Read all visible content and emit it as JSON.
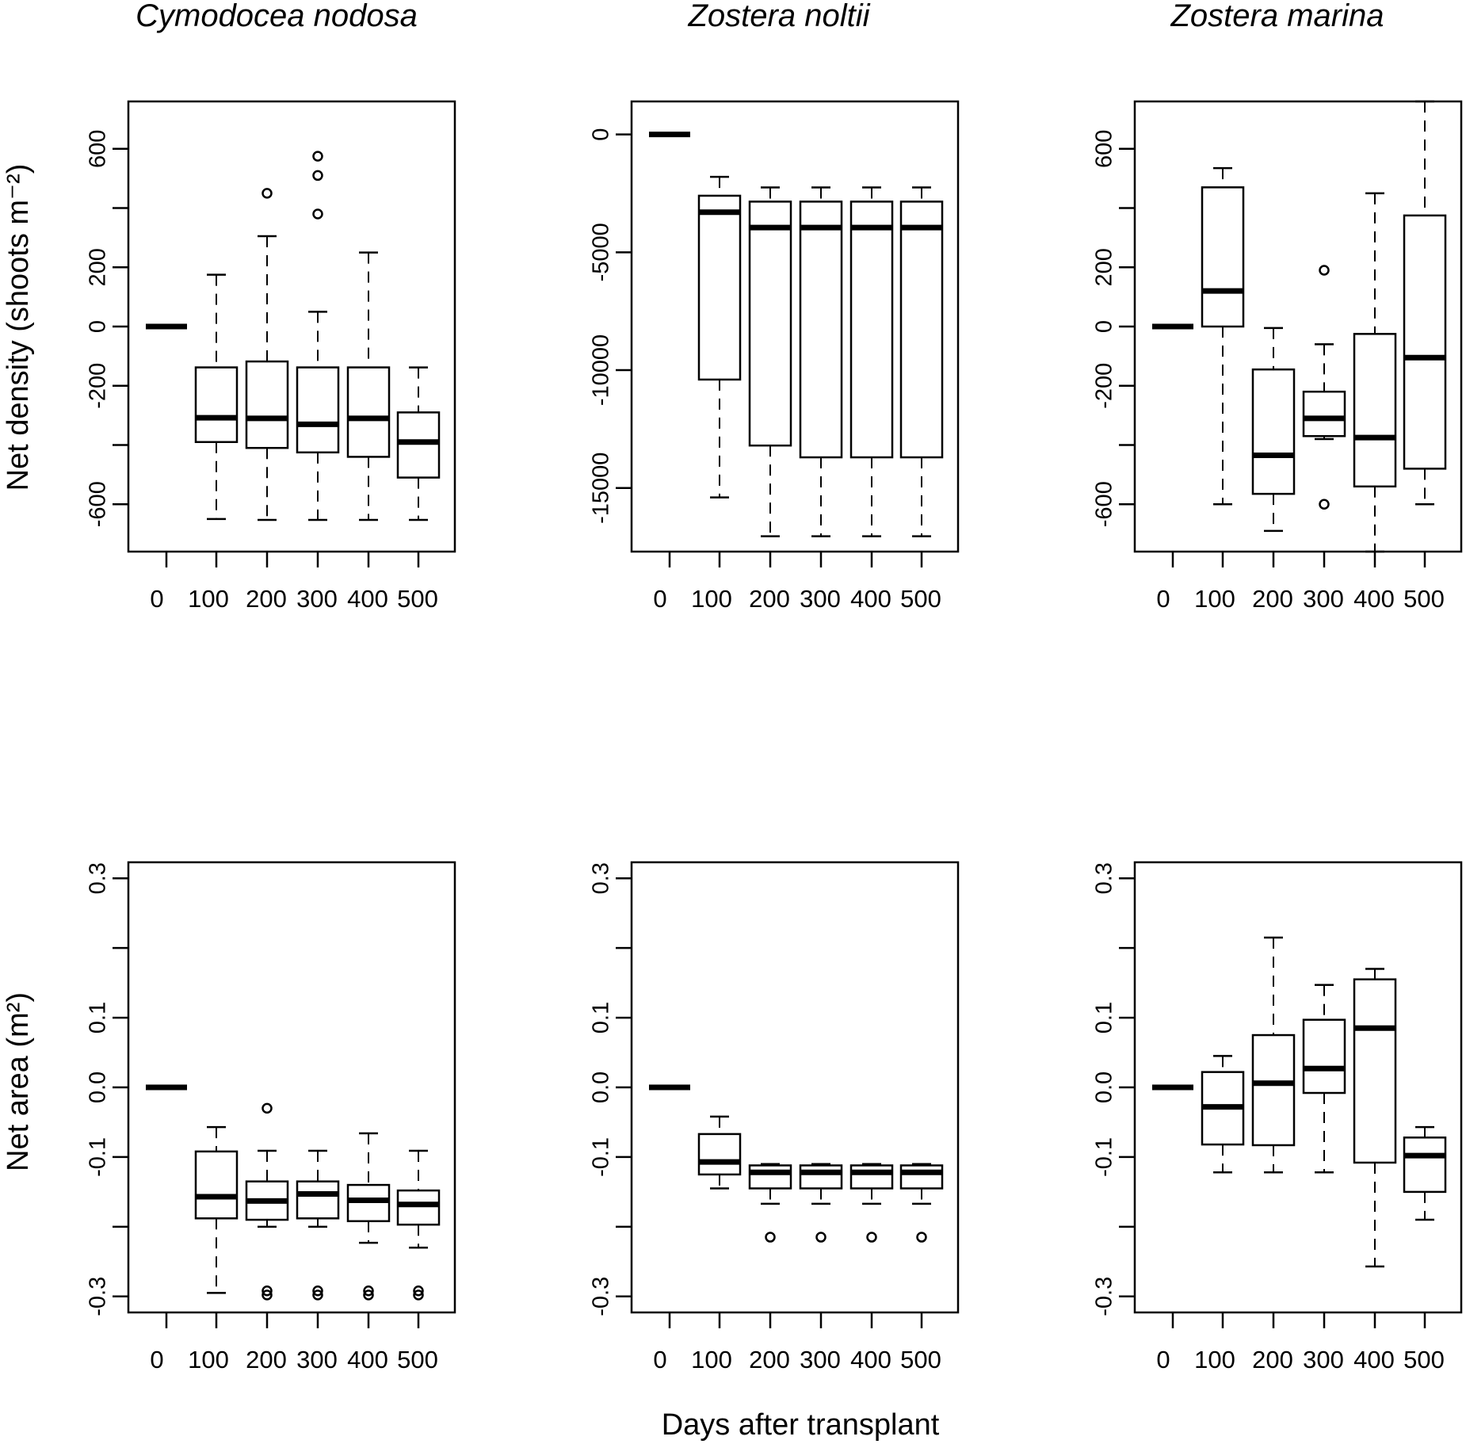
{
  "figure": {
    "row_labels": [
      "Net density (shoots m⁻²)",
      "Net area (m²)"
    ],
    "x_axis_label": "Days after transplant"
  },
  "chart_data": [
    {
      "type": "boxplot",
      "title": "Cymodocea nodosa",
      "ylabel": "Net density (shoots m⁻²)",
      "xlabel": "Days after transplant",
      "categories": [
        "0",
        "100",
        "200",
        "300",
        "400",
        "500"
      ],
      "ylim": [
        -760,
        760
      ],
      "yticks": [
        -600,
        -200,
        0,
        200,
        600
      ],
      "yticks_minor": [
        -400,
        400
      ],
      "boxes": [
        {
          "min": 0,
          "q1": 0,
          "median": 0,
          "q3": 0,
          "max": 0,
          "outliers": []
        },
        {
          "min": -650,
          "q1": -390,
          "median": -308,
          "q3": -138,
          "max": 175,
          "outliers": []
        },
        {
          "min": -653,
          "q1": -410,
          "median": -310,
          "q3": -118,
          "max": 305,
          "outliers": [
            450
          ]
        },
        {
          "min": -653,
          "q1": -425,
          "median": -330,
          "q3": -138,
          "max": 50,
          "outliers": [
            380,
            510,
            575
          ]
        },
        {
          "min": -653,
          "q1": -440,
          "median": -310,
          "q3": -138,
          "max": 250,
          "outliers": []
        },
        {
          "min": -653,
          "q1": -510,
          "median": -390,
          "q3": -290,
          "max": -138,
          "outliers": []
        }
      ]
    },
    {
      "type": "boxplot",
      "title": "Zostera noltii",
      "ylabel": "",
      "xlabel": "Days after transplant",
      "categories": [
        "0",
        "100",
        "200",
        "300",
        "400",
        "500"
      ],
      "ylim": [
        -17700,
        1400
      ],
      "yticks": [
        -15000,
        -10000,
        -5000,
        0
      ],
      "yticks_minor": [],
      "boxes": [
        {
          "min": 0,
          "q1": 0,
          "median": 0,
          "q3": 0,
          "max": 0,
          "outliers": []
        },
        {
          "min": -15400,
          "q1": -10400,
          "median": -3300,
          "q3": -2600,
          "max": -1800,
          "outliers": []
        },
        {
          "min": -17050,
          "q1": -13200,
          "median": -3950,
          "q3": -2850,
          "max": -2250,
          "outliers": []
        },
        {
          "min": -17050,
          "q1": -13700,
          "median": -3950,
          "q3": -2850,
          "max": -2250,
          "outliers": []
        },
        {
          "min": -17050,
          "q1": -13700,
          "median": -3950,
          "q3": -2850,
          "max": -2250,
          "outliers": []
        },
        {
          "min": -17050,
          "q1": -13700,
          "median": -3950,
          "q3": -2850,
          "max": -2250,
          "outliers": []
        }
      ]
    },
    {
      "type": "boxplot",
      "title": "Zostera marina",
      "ylabel": "",
      "xlabel": "Days after transplant",
      "categories": [
        "0",
        "100",
        "200",
        "300",
        "400",
        "500"
      ],
      "ylim": [
        -760,
        760
      ],
      "yticks": [
        -600,
        -200,
        0,
        200,
        600
      ],
      "yticks_minor": [
        -400,
        400
      ],
      "boxes": [
        {
          "min": 0,
          "q1": 0,
          "median": 0,
          "q3": 0,
          "max": 0,
          "outliers": []
        },
        {
          "min": -600,
          "q1": 0,
          "median": 120,
          "q3": 470,
          "max": 535,
          "outliers": []
        },
        {
          "min": -690,
          "q1": -565,
          "median": -435,
          "q3": -145,
          "max": -5,
          "outliers": []
        },
        {
          "min": -380,
          "q1": -370,
          "median": -310,
          "q3": -220,
          "max": -60,
          "outliers": [
            -600,
            190
          ]
        },
        {
          "min": -760,
          "q1": -540,
          "median": -375,
          "q3": -25,
          "max": 450,
          "outliers": []
        },
        {
          "min": -600,
          "q1": -480,
          "median": -105,
          "q3": 375,
          "max": 760,
          "outliers": []
        }
      ]
    },
    {
      "type": "boxplot",
      "title": "",
      "ylabel": "Net area (m²)",
      "xlabel": "Days after transplant",
      "categories": [
        "0",
        "100",
        "200",
        "300",
        "400",
        "500"
      ],
      "ylim": [
        -0.323,
        0.323
      ],
      "yticks": [
        -0.3,
        -0.1,
        0.0,
        0.1,
        0.3
      ],
      "yticks_minor": [
        -0.2,
        0.2
      ],
      "boxes": [
        {
          "min": 0.0,
          "q1": 0.0,
          "median": 0.0,
          "q3": 0.0,
          "max": 0.0,
          "outliers": []
        },
        {
          "min": -0.295,
          "q1": -0.188,
          "median": -0.157,
          "q3": -0.092,
          "max": -0.057,
          "outliers": []
        },
        {
          "min": -0.2,
          "q1": -0.19,
          "median": -0.163,
          "q3": -0.135,
          "max": -0.091,
          "outliers": [
            -0.03,
            -0.292,
            -0.298
          ]
        },
        {
          "min": -0.2,
          "q1": -0.188,
          "median": -0.153,
          "q3": -0.135,
          "max": -0.091,
          "outliers": [
            -0.292,
            -0.298
          ]
        },
        {
          "min": -0.223,
          "q1": -0.192,
          "median": -0.162,
          "q3": -0.14,
          "max": -0.066,
          "outliers": [
            -0.292,
            -0.298
          ]
        },
        {
          "min": -0.23,
          "q1": -0.197,
          "median": -0.168,
          "q3": -0.148,
          "max": -0.091,
          "outliers": [
            -0.292,
            -0.298
          ]
        }
      ]
    },
    {
      "type": "boxplot",
      "title": "",
      "ylabel": "",
      "xlabel": "Days after transplant",
      "categories": [
        "0",
        "100",
        "200",
        "300",
        "400",
        "500"
      ],
      "ylim": [
        -0.323,
        0.323
      ],
      "yticks": [
        -0.3,
        -0.1,
        0.0,
        0.1,
        0.3
      ],
      "yticks_minor": [
        -0.2,
        0.2
      ],
      "boxes": [
        {
          "min": 0.0,
          "q1": 0.0,
          "median": 0.0,
          "q3": 0.0,
          "max": 0.0,
          "outliers": []
        },
        {
          "min": -0.145,
          "q1": -0.125,
          "median": -0.107,
          "q3": -0.067,
          "max": -0.042,
          "outliers": []
        },
        {
          "min": -0.167,
          "q1": -0.145,
          "median": -0.122,
          "q3": -0.112,
          "max": -0.11,
          "outliers": [
            -0.215
          ]
        },
        {
          "min": -0.167,
          "q1": -0.145,
          "median": -0.122,
          "q3": -0.112,
          "max": -0.11,
          "outliers": [
            -0.215
          ]
        },
        {
          "min": -0.167,
          "q1": -0.145,
          "median": -0.122,
          "q3": -0.112,
          "max": -0.11,
          "outliers": [
            -0.215
          ]
        },
        {
          "min": -0.167,
          "q1": -0.145,
          "median": -0.122,
          "q3": -0.112,
          "max": -0.11,
          "outliers": [
            -0.215
          ]
        }
      ]
    },
    {
      "type": "boxplot",
      "title": "",
      "ylabel": "",
      "xlabel": "Days after transplant",
      "categories": [
        "0",
        "100",
        "200",
        "300",
        "400",
        "500"
      ],
      "ylim": [
        -0.323,
        0.323
      ],
      "yticks": [
        -0.3,
        -0.1,
        0.0,
        0.1,
        0.3
      ],
      "yticks_minor": [
        -0.2,
        0.2
      ],
      "boxes": [
        {
          "min": 0.0,
          "q1": 0.0,
          "median": 0.0,
          "q3": 0.0,
          "max": 0.0,
          "outliers": []
        },
        {
          "min": -0.122,
          "q1": -0.082,
          "median": -0.028,
          "q3": 0.022,
          "max": 0.045,
          "outliers": []
        },
        {
          "min": -0.122,
          "q1": -0.083,
          "median": 0.006,
          "q3": 0.075,
          "max": 0.215,
          "outliers": []
        },
        {
          "min": -0.122,
          "q1": -0.008,
          "median": 0.027,
          "q3": 0.097,
          "max": 0.147,
          "outliers": []
        },
        {
          "min": -0.257,
          "q1": -0.108,
          "median": 0.085,
          "q3": 0.155,
          "max": 0.17,
          "outliers": []
        },
        {
          "min": -0.19,
          "q1": -0.15,
          "median": -0.098,
          "q3": -0.072,
          "max": -0.057,
          "outliers": []
        }
      ]
    }
  ]
}
